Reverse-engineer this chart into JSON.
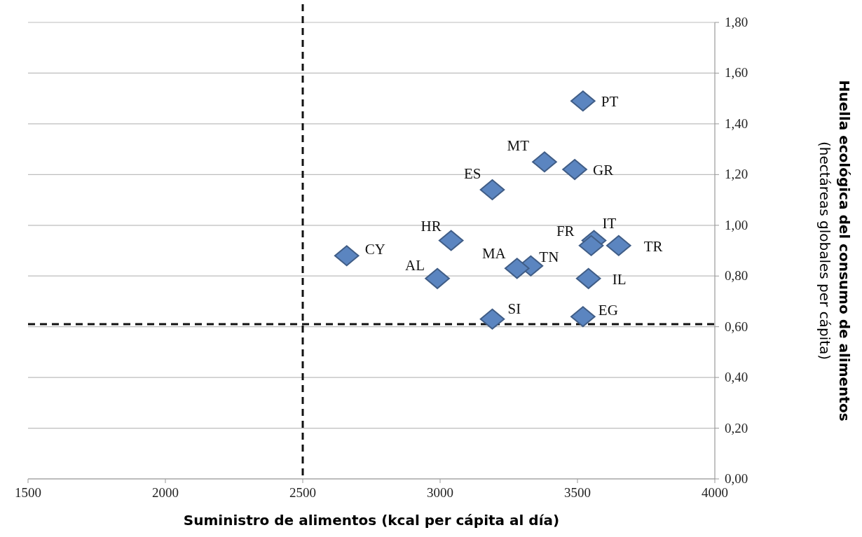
{
  "chart_data": {
    "type": "scatter",
    "xlabel": "Suministro de alimentos (kcal per cápita al día)",
    "ylabel": "Huella ecológica del consumo de alimentos\n(hectáreas globales per cápita)",
    "x": [
      3520,
      3380,
      3490,
      3190,
      3040,
      2660,
      3550,
      3560,
      3650,
      2990,
      3280,
      3330,
      3540,
      3190,
      3520
    ],
    "series": [
      {
        "color": "#5b85c0",
        "values": [
          1.49,
          1.25,
          1.22,
          1.14,
          0.94,
          0.88,
          0.92,
          0.94,
          0.92,
          0.79,
          0.83,
          0.84,
          0.79,
          0.63,
          0.64
        ]
      }
    ],
    "annotations": [
      {
        "text": "PT",
        "x": 3520,
        "y": 1.49
      },
      {
        "text": "MT",
        "x": 3380,
        "y": 1.25
      },
      {
        "text": "GR",
        "x": 3490,
        "y": 1.22
      },
      {
        "text": "ES",
        "x": 3190,
        "y": 1.14
      },
      {
        "text": "HR",
        "x": 3040,
        "y": 0.94
      },
      {
        "text": "CY",
        "x": 2660,
        "y": 0.88
      },
      {
        "text": "FR",
        "x": 3550,
        "y": 0.92
      },
      {
        "text": "IT",
        "x": 3560,
        "y": 0.94
      },
      {
        "text": "TR",
        "x": 3650,
        "y": 0.92
      },
      {
        "text": "AL",
        "x": 2990,
        "y": 0.79
      },
      {
        "text": "MA",
        "x": 3280,
        "y": 0.83
      },
      {
        "text": "TN",
        "x": 3330,
        "y": 0.84
      },
      {
        "text": "IL",
        "x": 3540,
        "y": 0.79
      },
      {
        "text": "SI",
        "x": 3190,
        "y": 0.63
      },
      {
        "text": "EG",
        "x": 3520,
        "y": 0.64
      }
    ],
    "xlim": [
      1500,
      4000
    ],
    "xticks": [
      1500,
      2000,
      2500,
      3000,
      3500,
      4000
    ],
    "ylim": [
      0,
      1.8
    ],
    "yticks": [
      {
        "value": 0,
        "label": "0,00"
      },
      {
        "value": 0.2,
        "label": "0,20"
      },
      {
        "value": 0.4,
        "label": "0,40"
      },
      {
        "value": 0.6,
        "label": "0,60"
      },
      {
        "value": 0.8,
        "label": "0,80"
      },
      {
        "value": 1,
        "label": "1,00"
      },
      {
        "value": 1.2,
        "label": "1,20"
      },
      {
        "value": 1.4,
        "label": "1,40"
      },
      {
        "value": 1.6,
        "label": "1,60"
      },
      {
        "value": 1.8,
        "label": "1,80"
      }
    ],
    "ref_lines": [
      {
        "axis": "x",
        "value": 2500,
        "line_style": "dashed"
      },
      {
        "axis": "y",
        "value": 0.61,
        "line_style": "dashed"
      }
    ],
    "grid": "y",
    "marker": "diamond"
  }
}
